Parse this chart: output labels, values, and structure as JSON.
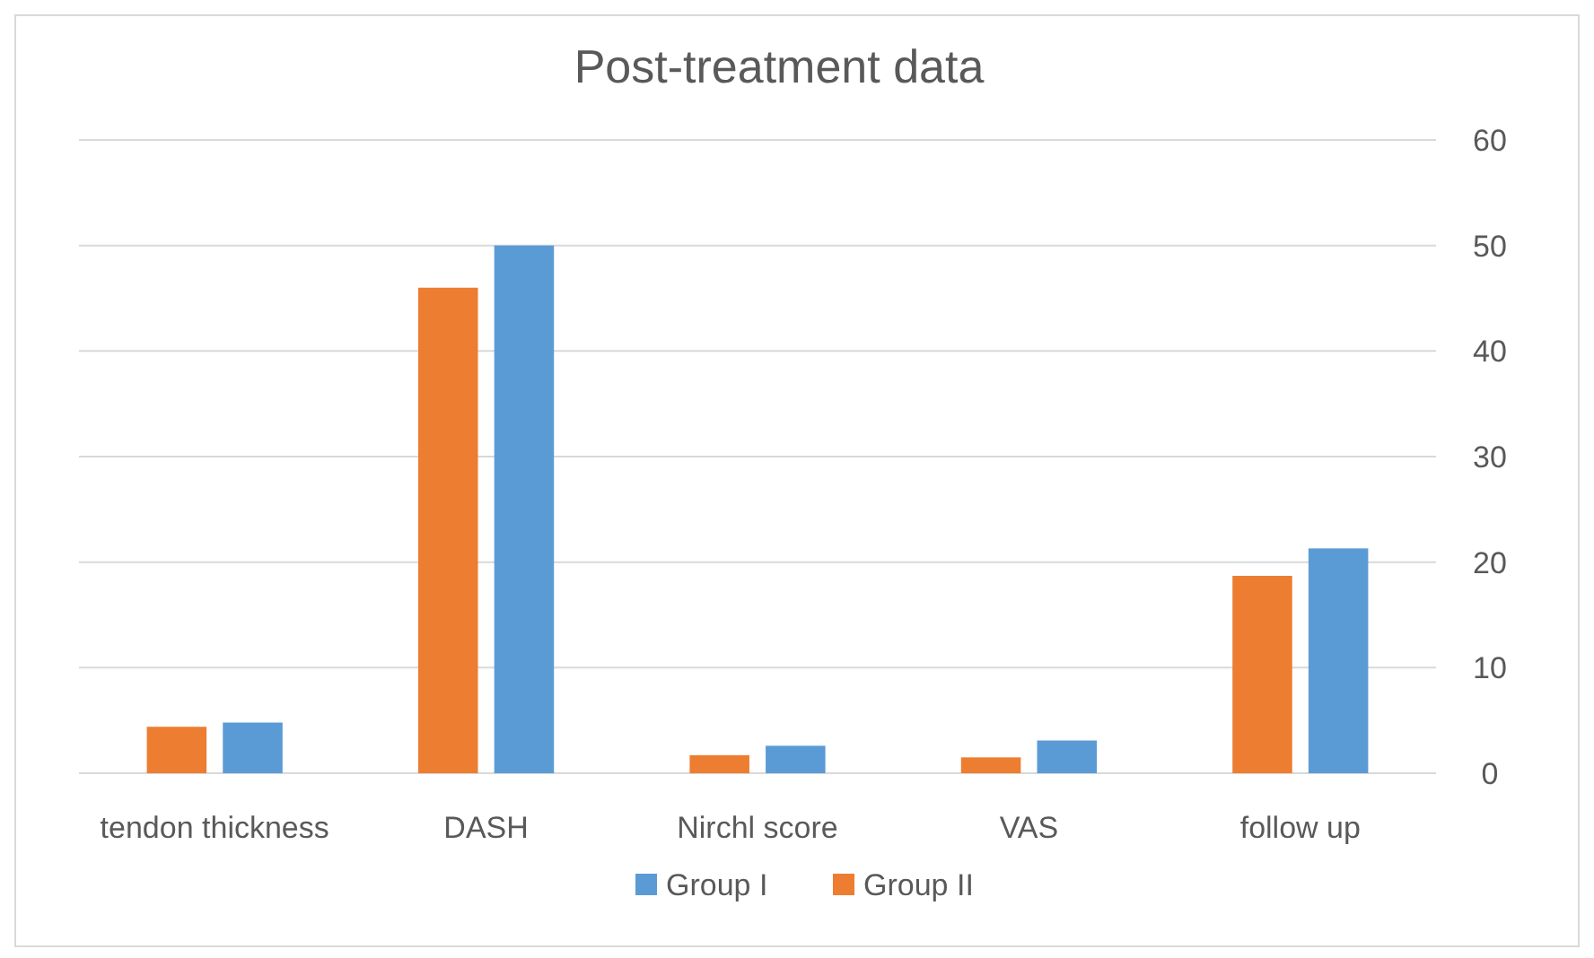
{
  "chart_data": {
    "type": "bar",
    "title": "Post-treatment data",
    "categories": [
      "tendon thickness",
      "DASH",
      "Nirchl score",
      "VAS",
      "follow up"
    ],
    "series": [
      {
        "name": "Group II",
        "color": "#ed7d31",
        "values": [
          4.4,
          46,
          1.7,
          1.5,
          18.7
        ]
      },
      {
        "name": "Group I",
        "color": "#5b9bd5",
        "values": [
          4.8,
          50,
          2.6,
          3.1,
          21.3
        ]
      }
    ],
    "ylim": [
      0,
      60
    ],
    "yticks": [
      0,
      10,
      20,
      30,
      40,
      50,
      60
    ],
    "grid": "y",
    "legend": "bottom"
  }
}
